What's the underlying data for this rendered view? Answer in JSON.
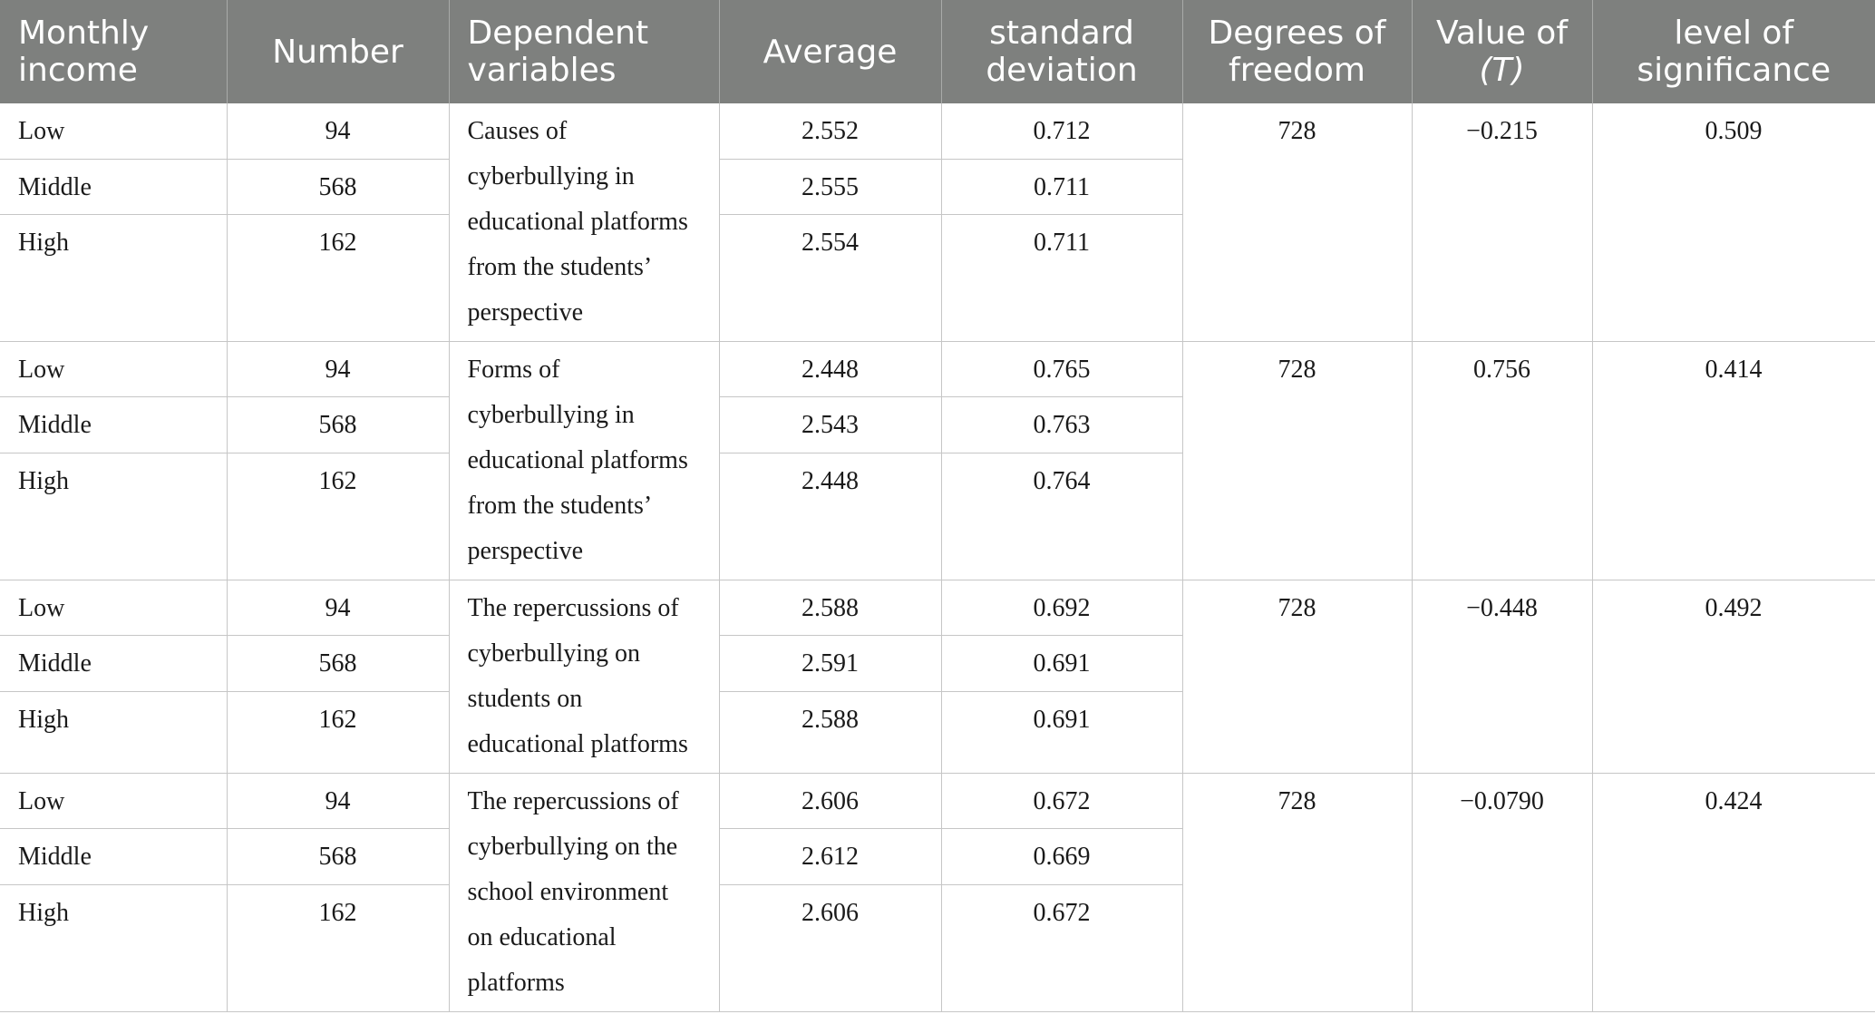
{
  "headers": {
    "monthly_income_1": "Monthly",
    "monthly_income_2": "income",
    "number": "Number",
    "dependent_1": "Dependent",
    "dependent_2": "variables",
    "average": "Average",
    "std_1": "standard",
    "std_2": "deviation",
    "df_1": "Degrees of",
    "df_2": "freedom",
    "t_1": "Value of",
    "t_2": "(T)",
    "sig_1": "level of",
    "sig_2": "significance"
  },
  "groups": [
    {
      "dependent_lines": [
        "Causes of",
        "cyberbullying in",
        "educational platforms",
        "from the students’",
        "perspective"
      ],
      "df": "728",
      "t": "−0.215",
      "sig": "0.509",
      "rows": [
        {
          "income": "Low",
          "number": "94",
          "average": "2.552",
          "std": "0.712"
        },
        {
          "income": "Middle",
          "number": "568",
          "average": "2.555",
          "std": "0.711"
        },
        {
          "income": "High",
          "number": "162",
          "average": "2.554",
          "std": "0.711"
        }
      ]
    },
    {
      "dependent_lines": [
        "Forms of",
        "cyberbullying in",
        "educational platforms",
        "from the students’",
        "perspective"
      ],
      "df": "728",
      "t": "0.756",
      "sig": "0.414",
      "rows": [
        {
          "income": "Low",
          "number": "94",
          "average": "2.448",
          "std": "0.765"
        },
        {
          "income": "Middle",
          "number": "568",
          "average": "2.543",
          "std": "0.763"
        },
        {
          "income": "High",
          "number": "162",
          "average": "2.448",
          "std": "0.764"
        }
      ]
    },
    {
      "dependent_lines": [
        "The repercussions of",
        "cyberbullying on",
        "students on",
        "educational platforms"
      ],
      "df": "728",
      "t": "−0.448",
      "sig": "0.492",
      "rows": [
        {
          "income": "Low",
          "number": "94",
          "average": "2.588",
          "std": "0.692"
        },
        {
          "income": "Middle",
          "number": "568",
          "average": "2.591",
          "std": "0.691"
        },
        {
          "income": "High",
          "number": "162",
          "average": "2.588",
          "std": "0.691"
        }
      ]
    },
    {
      "dependent_lines": [
        "The repercussions of",
        "cyberbullying on the",
        "school environment",
        "on educational",
        "platforms"
      ],
      "df": "728",
      "t": "−0.0790",
      "sig": "0.424",
      "rows": [
        {
          "income": "Low",
          "number": "94",
          "average": "2.606",
          "std": "0.672"
        },
        {
          "income": "Middle",
          "number": "568",
          "average": "2.612",
          "std": "0.669"
        },
        {
          "income": "High",
          "number": "162",
          "average": "2.606",
          "std": "0.672"
        }
      ]
    }
  ]
}
